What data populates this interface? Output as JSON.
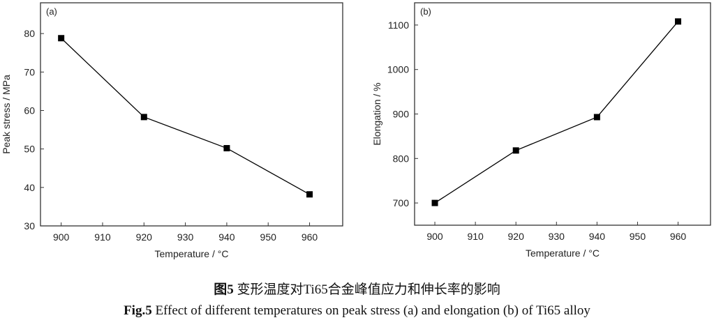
{
  "chart_data": [
    {
      "type": "line",
      "panel_label": "(a)",
      "xlabel": "Temperature / °C",
      "ylabel": "Peak stress / MPa",
      "x": [
        900,
        920,
        940,
        960
      ],
      "values": [
        78.8,
        58.3,
        50.2,
        38.2
      ],
      "xlim": [
        895,
        968
      ],
      "ylim": [
        30,
        88
      ],
      "xticks": [
        900,
        910,
        920,
        930,
        940,
        950,
        960
      ],
      "yticks": [
        30,
        40,
        50,
        60,
        70,
        80
      ],
      "marker": "square",
      "color": "#000000",
      "grid": false
    },
    {
      "type": "line",
      "panel_label": "(b)",
      "xlabel": "Temperature / °C",
      "ylabel": "Elongation / %",
      "x": [
        900,
        920,
        940,
        960
      ],
      "values": [
        700,
        818,
        893,
        1108
      ],
      "xlim": [
        895,
        968
      ],
      "ylim": [
        650,
        1150
      ],
      "xticks": [
        900,
        910,
        920,
        930,
        940,
        950,
        960
      ],
      "yticks": [
        700,
        800,
        900,
        1000,
        1100
      ],
      "marker": "square",
      "color": "#000000",
      "grid": false
    }
  ],
  "caption": {
    "cn_label": "图5",
    "cn_text": " 变形温度对Ti65合金峰值应力和伸长率的影响",
    "en_label": "Fig.5",
    "en_text": " Effect of different temperatures on peak stress (a) and elongation (b) of Ti65 alloy"
  }
}
